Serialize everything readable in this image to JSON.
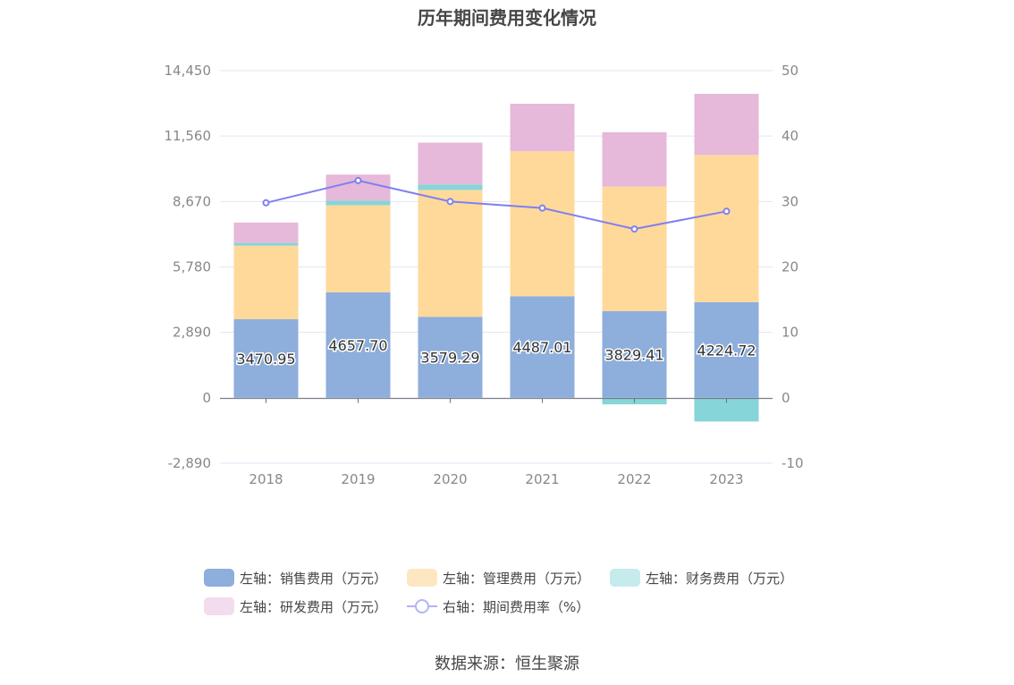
{
  "chart_data": {
    "type": "bar",
    "title": "历年期间费用变化情况",
    "categories": [
      "2018",
      "2019",
      "2020",
      "2021",
      "2022",
      "2023"
    ],
    "left_axis": {
      "ticks": [
        "14,450",
        "11,560",
        "8,670",
        "5,780",
        "2,890",
        "0",
        "-2,890"
      ],
      "min": -2890,
      "max": 14450
    },
    "right_axis": {
      "ticks": [
        "50",
        "40",
        "30",
        "20",
        "10",
        "0",
        "-10"
      ],
      "min": -10,
      "max": 50
    },
    "series": [
      {
        "name": "左轴：销售费用（万元）",
        "color": "#8eaedb",
        "stack": true,
        "values": [
          3470.95,
          4657.7,
          3579.29,
          4487.01,
          3829.41,
          4224.72
        ],
        "labels": [
          "3470.95",
          "4657.70",
          "3579.29",
          "4487.01",
          "3829.41",
          "4224.72"
        ]
      },
      {
        "name": "左轴：管理费用（万元）",
        "color": "#ffd99a",
        "stack": true,
        "values": [
          3250,
          3850,
          5600,
          6400,
          5500,
          6500
        ]
      },
      {
        "name": "左轴：财务费用（万元）",
        "color": "#86d5d8",
        "stack": true,
        "values": [
          120,
          200,
          240,
          0,
          -290,
          -1050
        ]
      },
      {
        "name": "左轴：研发费用（万元）",
        "color": "#e6b8d9",
        "stack": true,
        "values": [
          900,
          1150,
          1850,
          2100,
          2400,
          2700
        ]
      },
      {
        "name": "右轴：期间费用率（%）",
        "color": "#7f7ff0",
        "type": "line",
        "axis": "right",
        "values": [
          29.8,
          33.2,
          30.0,
          29.0,
          25.8,
          28.5
        ]
      }
    ],
    "legend_fill": {
      "sales": "#8eaedb",
      "admin": "#fde7c2",
      "finance": "#c5ebec",
      "rnd": "#f3dced",
      "rate": "#b3b3f7"
    }
  },
  "source": "数据来源：恒生聚源"
}
